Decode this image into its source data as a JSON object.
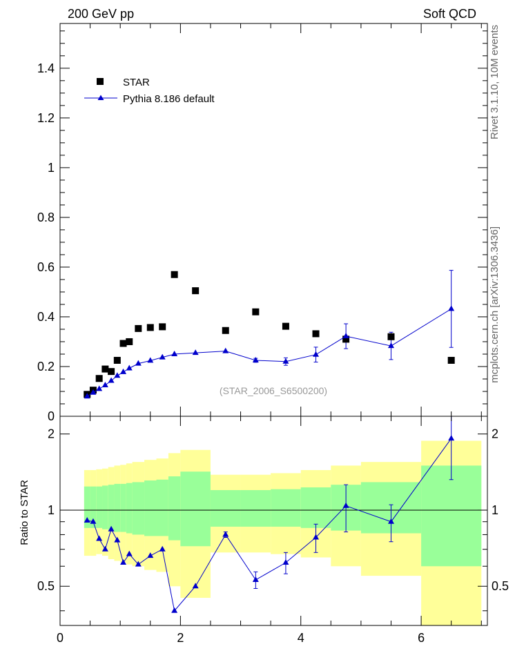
{
  "header": {
    "left_label": "200 GeV pp",
    "right_label": "Soft QCD",
    "side_label_top": "Rivet 3.1.10, 10M events",
    "side_label_bottom": "mcplots.cern.ch [arXiv:1306.3436]",
    "watermark": "(STAR_2006_S6500200)"
  },
  "colors": {
    "star": "#000000",
    "pythia": "#0000cc",
    "band_inner": "#99ff99",
    "band_outer": "#ffff99"
  },
  "chart_data": [
    {
      "type": "scatter",
      "panel": "main",
      "xlim": [
        0,
        7.1
      ],
      "ylim": [
        0,
        1.58
      ],
      "yticks": [
        0,
        0.2,
        0.4,
        0.6,
        0.8,
        1,
        1.2,
        1.4
      ],
      "ytick_labels": [
        "0",
        "0.2",
        "0.4",
        "0.6",
        "0.8",
        "1",
        "1.2",
        "1.4"
      ],
      "legend_position": "top-left",
      "series": [
        {
          "name": "STAR",
          "marker": "square",
          "x": [
            0.45,
            0.55,
            0.65,
            0.75,
            0.85,
            0.95,
            1.05,
            1.15,
            1.3,
            1.5,
            1.7,
            1.9,
            2.25,
            2.75,
            3.25,
            3.75,
            4.25,
            4.75,
            5.5,
            6.5
          ],
          "y": [
            0.088,
            0.105,
            0.152,
            0.19,
            0.18,
            0.225,
            0.293,
            0.3,
            0.353,
            0.357,
            0.36,
            0.57,
            0.505,
            0.345,
            0.42,
            0.362,
            0.332,
            0.31,
            0.32,
            0.225
          ]
        },
        {
          "name": "Pythia 8.186 default",
          "marker": "triangle",
          "x": [
            0.45,
            0.55,
            0.65,
            0.75,
            0.85,
            0.95,
            1.05,
            1.15,
            1.3,
            1.5,
            1.7,
            1.9,
            2.25,
            2.75,
            3.25,
            3.75,
            4.25,
            4.75,
            5.5,
            6.5
          ],
          "y": [
            0.08,
            0.095,
            0.11,
            0.125,
            0.143,
            0.163,
            0.178,
            0.193,
            0.212,
            0.224,
            0.237,
            0.25,
            0.255,
            0.262,
            0.225,
            0.22,
            0.248,
            0.322,
            0.283,
            0.432
          ],
          "err": [
            0,
            0,
            0,
            0,
            0,
            0,
            0,
            0,
            0,
            0,
            0,
            0,
            0,
            0,
            0.008,
            0.015,
            0.03,
            0.05,
            0.055,
            0.155
          ]
        }
      ]
    },
    {
      "type": "line",
      "panel": "ratio",
      "ylabel": "Ratio to STAR",
      "xlim": [
        0,
        7.1
      ],
      "ylim": [
        0.35,
        2.35
      ],
      "yticks": [
        0.5,
        1,
        2
      ],
      "ytick_labels": [
        "0.5",
        "1",
        "2"
      ],
      "xticks": [
        0,
        2,
        4,
        6
      ],
      "xtick_labels": [
        "0",
        "2",
        "4",
        "6"
      ],
      "reference_line": 1,
      "bands": {
        "edges": [
          0.4,
          0.5,
          0.6,
          0.7,
          0.8,
          0.9,
          1.0,
          1.1,
          1.2,
          1.4,
          1.6,
          1.8,
          2.0,
          2.5,
          3.0,
          3.5,
          4.0,
          4.5,
          5.0,
          6.0,
          7.0
        ],
        "inner_low": [
          0.85,
          0.85,
          0.85,
          0.84,
          0.83,
          0.82,
          0.82,
          0.81,
          0.8,
          0.79,
          0.79,
          0.76,
          0.72,
          0.86,
          0.86,
          0.86,
          0.85,
          0.83,
          0.81,
          0.6
        ],
        "inner_high": [
          1.24,
          1.24,
          1.24,
          1.25,
          1.26,
          1.27,
          1.27,
          1.28,
          1.29,
          1.31,
          1.32,
          1.36,
          1.42,
          1.2,
          1.2,
          1.21,
          1.23,
          1.26,
          1.29,
          1.5
        ],
        "outer_low": [
          0.66,
          0.66,
          0.67,
          0.66,
          0.64,
          0.63,
          0.62,
          0.61,
          0.6,
          0.58,
          0.57,
          0.5,
          0.45,
          0.68,
          0.68,
          0.67,
          0.65,
          0.6,
          0.55,
          0.35
        ],
        "outer_high": [
          1.44,
          1.44,
          1.45,
          1.46,
          1.48,
          1.5,
          1.51,
          1.53,
          1.55,
          1.58,
          1.6,
          1.68,
          1.73,
          1.38,
          1.38,
          1.4,
          1.44,
          1.5,
          1.55,
          1.88
        ]
      },
      "series": [
        {
          "name": "Pythia 8.186 default",
          "marker": "triangle",
          "x": [
            0.45,
            0.55,
            0.65,
            0.75,
            0.85,
            0.95,
            1.05,
            1.15,
            1.3,
            1.5,
            1.7,
            1.9,
            2.25,
            2.75,
            3.25,
            3.75,
            4.25,
            4.75,
            5.5,
            6.5
          ],
          "y": [
            0.91,
            0.9,
            0.77,
            0.7,
            0.84,
            0.76,
            0.62,
            0.67,
            0.61,
            0.66,
            0.7,
            0.4,
            0.5,
            0.8,
            0.53,
            0.62,
            0.78,
            1.04,
            0.9,
            1.92
          ],
          "err": [
            0,
            0,
            0,
            0,
            0,
            0,
            0,
            0,
            0,
            0,
            0,
            0,
            0,
            0.02,
            0.04,
            0.06,
            0.1,
            0.22,
            0.15,
            0.6
          ]
        }
      ]
    }
  ]
}
